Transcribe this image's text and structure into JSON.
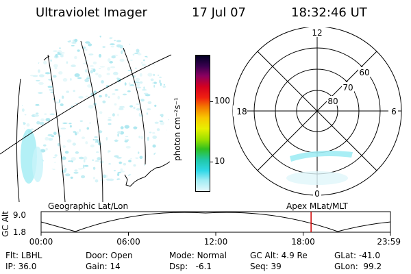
{
  "header": {
    "instrument": "Ultraviolet Imager",
    "date": "17 Jul 07",
    "time": "18:32:46 UT"
  },
  "left_panel": {
    "label": "Geographic Lat/Lon"
  },
  "color_bar": {
    "unit_label": "photon cm⁻²s⁻¹",
    "tick_labels": [
      "100",
      "10"
    ],
    "colors": [
      "#000022",
      "#3a0050",
      "#8a0060",
      "#d40020",
      "#f02010",
      "#f47a00",
      "#f8c800",
      "#e8f000",
      "#9ae000",
      "#30c020",
      "#20c8a8",
      "#30d8e8",
      "#a0ecf4",
      "#e4f8fc"
    ]
  },
  "right_panel": {
    "label": "Apex MLat/MLT",
    "mlt_labels": {
      "top": "12",
      "left": "18",
      "right": "6",
      "bottom": "0"
    },
    "mlat_labels": [
      "80",
      "70",
      "60"
    ]
  },
  "altitude_plot": {
    "ylabel": "GC Alt",
    "ytick_top": "9.0",
    "ytick_bottom": "1.8",
    "time_ticks": [
      "00:00",
      "06:00",
      "12:00",
      "18:00",
      "23:59"
    ],
    "current_time_fraction": 0.7728
  },
  "info": {
    "row1": [
      {
        "label": "Flt:",
        "value": "LBHL"
      },
      {
        "label": "Door:",
        "value": "Open"
      },
      {
        "label": "Mode:",
        "value": "Normal"
      },
      {
        "label": "GC Alt:",
        "value": "4.9 Re"
      },
      {
        "label": "GLat:",
        "value": "-41.0"
      }
    ],
    "row2": [
      {
        "label": "IP:",
        "value": "36.0"
      },
      {
        "label": "Gain:",
        "value": "14"
      },
      {
        "label": "Dsp:",
        "value": "-6.1"
      },
      {
        "label": "Seq:",
        "value": "39"
      },
      {
        "label": "GLon:",
        "value": "99.2"
      }
    ]
  }
}
